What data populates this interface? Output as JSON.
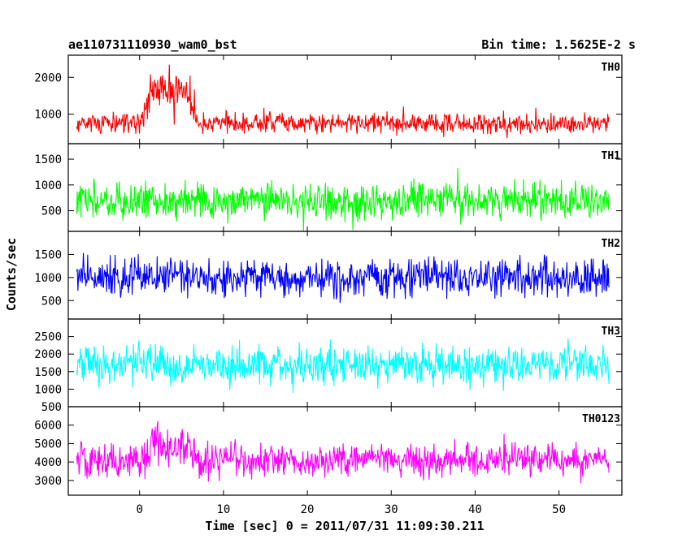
{
  "chart_data": {
    "type": "line",
    "title_left": "ae110731110930_wam0_bst",
    "title_right": "Bin time: 1.5625E-2 s",
    "xlabel": "Time [sec] 0 = 2011/07/31 11:09:30.211",
    "ylabel": "Counts/sec",
    "xlim": [
      -8.5,
      57.5
    ],
    "x_ticks": [
      0,
      10,
      20,
      30,
      40,
      50
    ],
    "x_tick_labels": [
      "0",
      "10",
      "20",
      "30",
      "40",
      "50"
    ],
    "data_x_range": [
      -7.5,
      56
    ],
    "panels": [
      {
        "name": "TH0",
        "color": "#ff0000",
        "ylim": [
          200,
          2600
        ],
        "y_ticks": [
          1000,
          2000
        ],
        "y_tick_labels": [
          "1000",
          "2000"
        ],
        "baseline_mean": 750,
        "noise_amplitude": 420,
        "burst": {
          "start": 0,
          "end": 7,
          "peak_mean": 1700,
          "peak_amplitude": 800
        }
      },
      {
        "name": "TH1",
        "color": "#00ff00",
        "ylim": [
          100,
          1800
        ],
        "y_ticks": [
          500,
          1000,
          1500
        ],
        "y_tick_labels": [
          "500",
          "1000",
          "1500"
        ],
        "baseline_mean": 700,
        "noise_amplitude": 520,
        "burst": null
      },
      {
        "name": "TH2",
        "color": "#0000ff",
        "ylim": [
          100,
          2000
        ],
        "y_ticks": [
          500,
          1000,
          1500
        ],
        "y_tick_labels": [
          "500",
          "1000",
          "1500"
        ],
        "baseline_mean": 1000,
        "noise_amplitude": 600,
        "burst": null
      },
      {
        "name": "TH3",
        "color": "#00ffff",
        "ylim": [
          500,
          3000
        ],
        "y_ticks": [
          500,
          1000,
          1500,
          2000,
          2500
        ],
        "y_tick_labels": [
          "500",
          "1000",
          "1500",
          "2000",
          "2500"
        ],
        "baseline_mean": 1700,
        "noise_amplitude": 800,
        "burst": null
      },
      {
        "name": "TH0123",
        "color": "#ff00ff",
        "ylim": [
          2200,
          7000
        ],
        "y_ticks": [
          3000,
          4000,
          5000,
          6000
        ],
        "y_tick_labels": [
          "3000",
          "4000",
          "5000",
          "6000"
        ],
        "baseline_mean": 4100,
        "noise_amplitude": 1300,
        "burst": {
          "start": 0,
          "end": 7,
          "peak_mean": 4900,
          "peak_amplitude": 1700
        }
      }
    ]
  }
}
